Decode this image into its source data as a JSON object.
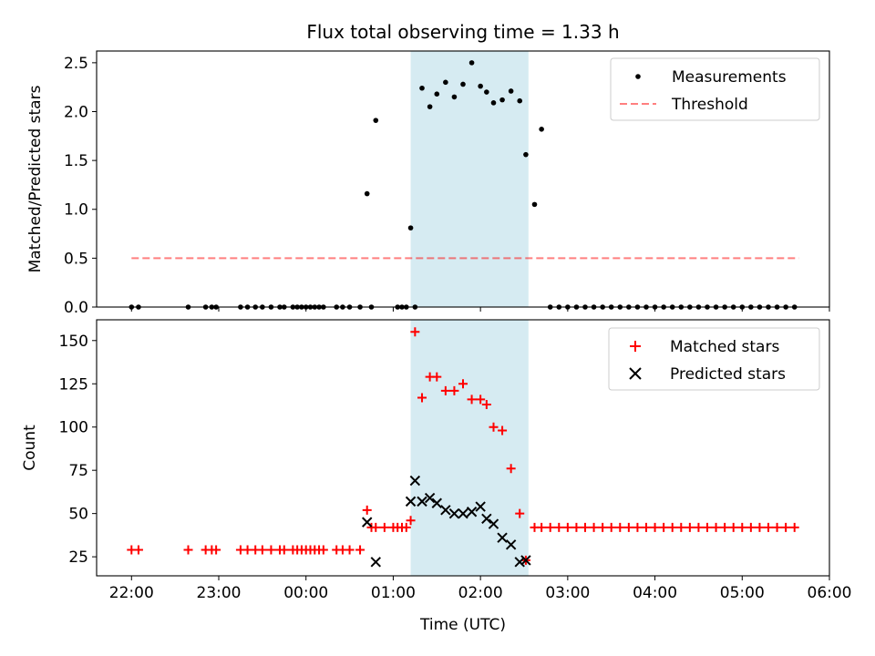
{
  "chart_data": [
    {
      "type": "scatter",
      "title": "Flux total observing time = 1.33 h",
      "xlabel": "",
      "ylabel": "Matched/Predicted stars",
      "ylim": [
        0,
        2.62
      ],
      "yticks": [
        0.0,
        0.5,
        1.0,
        1.5,
        2.0,
        2.5
      ],
      "ytick_labels": [
        "0.0",
        "0.5",
        "1.0",
        "1.5",
        "2.0",
        "2.5"
      ],
      "threshold": 0.5,
      "threshold_x": [
        0.0,
        7.65
      ],
      "shaded_span": [
        3.2,
        4.55
      ],
      "legend": {
        "location": "top-right",
        "entries": [
          "Measurements",
          "Threshold"
        ]
      },
      "series": [
        {
          "name": "Measurements",
          "x": [
            0.0,
            0.08,
            0.65,
            0.85,
            0.92,
            0.97,
            1.25,
            1.33,
            1.42,
            1.5,
            1.6,
            1.7,
            1.75,
            1.85,
            1.9,
            1.95,
            2.0,
            2.05,
            2.1,
            2.15,
            2.2,
            2.35,
            2.42,
            2.5,
            2.62,
            2.7,
            2.75,
            2.8,
            3.05,
            3.1,
            3.15,
            3.2,
            3.25,
            3.33,
            3.42,
            3.5,
            3.6,
            3.7,
            3.8,
            3.9,
            4.0,
            4.07,
            4.15,
            4.25,
            4.35,
            4.45,
            4.52,
            4.62,
            4.7,
            4.8,
            4.9,
            5.0,
            5.1,
            5.2,
            5.3,
            5.4,
            5.5,
            5.6,
            5.7,
            5.8,
            5.9,
            6.0,
            6.1,
            6.2,
            6.3,
            6.4,
            6.5,
            6.6,
            6.7,
            6.8,
            6.9,
            7.0,
            7.1,
            7.2,
            7.3,
            7.4,
            7.5,
            7.6
          ],
          "y": [
            0.0,
            0.0,
            0.0,
            0.0,
            0.0,
            0.0,
            0.0,
            0.0,
            0.0,
            0.0,
            0.0,
            0.0,
            0.0,
            0.0,
            0.0,
            0.0,
            0.0,
            0.0,
            0.0,
            0.0,
            0.0,
            0.0,
            0.0,
            0.0,
            0.0,
            1.16,
            0.0,
            1.91,
            0.0,
            0.0,
            0.0,
            0.81,
            0.0,
            2.24,
            2.05,
            2.18,
            2.3,
            2.15,
            2.28,
            2.5,
            2.26,
            2.2,
            2.09,
            2.12,
            2.21,
            2.11,
            1.56,
            1.05,
            1.82,
            0.0,
            0.0,
            0.0,
            0.0,
            0.0,
            0.0,
            0.0,
            0.0,
            0.0,
            0.0,
            0.0,
            0.0,
            0.0,
            0.0,
            0.0,
            0.0,
            0.0,
            0.0,
            0.0,
            0.0,
            0.0,
            0.0,
            0.0,
            0.0,
            0.0,
            0.0,
            0.0,
            0.0,
            0.0
          ]
        }
      ]
    },
    {
      "type": "scatter",
      "title": "",
      "xlabel": "Time (UTC)",
      "ylabel": "Count",
      "xlim": [
        -0.4,
        8.0
      ],
      "ylim": [
        14,
        162
      ],
      "xticks": [
        0,
        1,
        2,
        3,
        4,
        5,
        6,
        7,
        8
      ],
      "xtick_labels": [
        "22:00",
        "23:00",
        "00:00",
        "01:00",
        "02:00",
        "03:00",
        "04:00",
        "05:00",
        "06:00"
      ],
      "yticks": [
        25,
        50,
        75,
        100,
        125,
        150
      ],
      "ytick_labels": [
        "25",
        "50",
        "75",
        "100",
        "125",
        "150"
      ],
      "shaded_span": [
        3.2,
        4.55
      ],
      "legend": {
        "location": "top-right",
        "entries": [
          "Matched stars",
          "Predicted stars"
        ]
      },
      "series": [
        {
          "name": "Matched stars",
          "x": [
            0.0,
            0.08,
            0.65,
            0.85,
            0.92,
            0.97,
            1.25,
            1.33,
            1.42,
            1.5,
            1.6,
            1.7,
            1.75,
            1.85,
            1.9,
            1.95,
            2.0,
            2.05,
            2.1,
            2.15,
            2.2,
            2.35,
            2.42,
            2.5,
            2.62,
            2.7,
            2.75,
            2.8,
            2.9,
            3.0,
            3.05,
            3.1,
            3.15,
            3.2,
            3.25,
            3.33,
            3.42,
            3.5,
            3.6,
            3.7,
            3.8,
            3.9,
            4.0,
            4.07,
            4.15,
            4.25,
            4.35,
            4.45,
            4.52,
            4.62,
            4.7,
            4.8,
            4.9,
            5.0,
            5.1,
            5.2,
            5.3,
            5.4,
            5.5,
            5.6,
            5.7,
            5.8,
            5.9,
            6.0,
            6.1,
            6.2,
            6.3,
            6.4,
            6.5,
            6.6,
            6.7,
            6.8,
            6.9,
            7.0,
            7.1,
            7.2,
            7.3,
            7.4,
            7.5,
            7.6
          ],
          "y": [
            29,
            29,
            29,
            29,
            29,
            29,
            29,
            29,
            29,
            29,
            29,
            29,
            29,
            29,
            29,
            29,
            29,
            29,
            29,
            29,
            29,
            29,
            29,
            29,
            29,
            52,
            42,
            42,
            42,
            42,
            42,
            42,
            42,
            46,
            155,
            117,
            129,
            129,
            121,
            121,
            125,
            116,
            116,
            113,
            100,
            98,
            76,
            50,
            23,
            42,
            42,
            42,
            42,
            42,
            42,
            42,
            42,
            42,
            42,
            42,
            42,
            42,
            42,
            42,
            42,
            42,
            42,
            42,
            42,
            42,
            42,
            42,
            42,
            42,
            42,
            42,
            42,
            42,
            42,
            42
          ]
        },
        {
          "name": "Predicted stars",
          "x": [
            2.7,
            2.8,
            3.2,
            3.25,
            3.33,
            3.42,
            3.5,
            3.6,
            3.7,
            3.8,
            3.9,
            4.0,
            4.07,
            4.15,
            4.25,
            4.35,
            4.45,
            4.52
          ],
          "y": [
            45,
            22,
            57,
            69,
            57,
            59,
            56,
            52,
            50,
            50,
            51,
            54,
            47,
            44,
            36,
            32,
            22,
            23
          ]
        }
      ]
    }
  ]
}
